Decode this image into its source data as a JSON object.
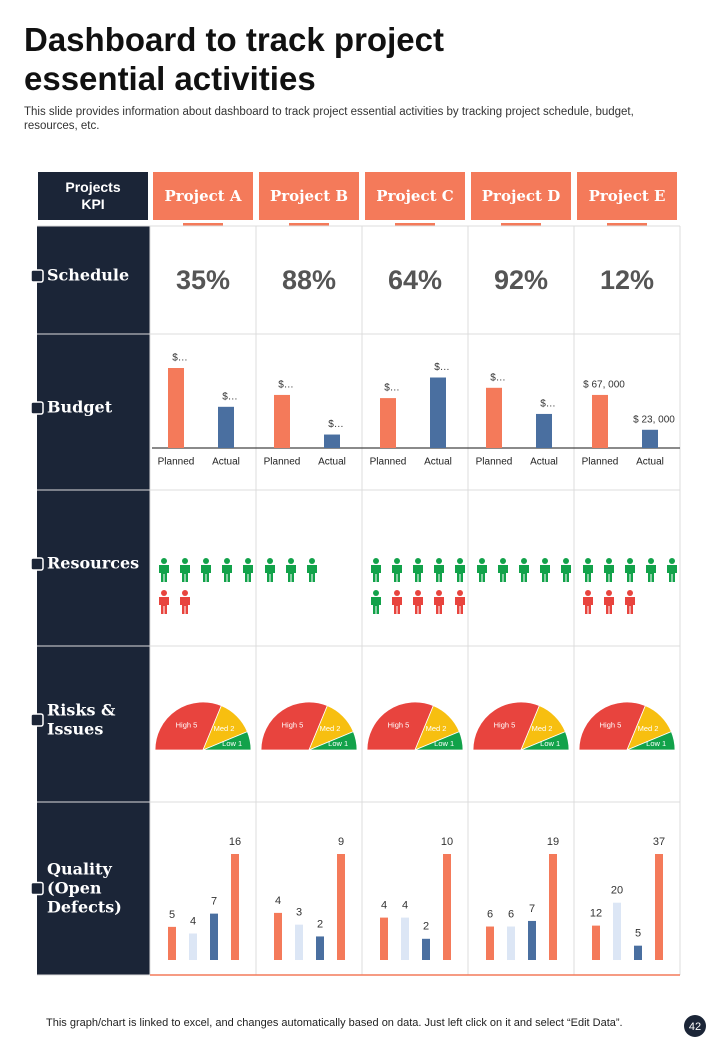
{
  "header": {
    "title": "Dashboard to track project essential activities",
    "subtitle": "This slide provides information about dashboard to track project essential activities by tracking project schedule, budget, resources, etc."
  },
  "kpi_header": "Projects KPI",
  "projects": [
    "Project A",
    "Project B",
    "Project C",
    "Project D",
    "Project E"
  ],
  "rows": [
    "Schedule",
    "Budget",
    "Resources",
    "Risks & Issues",
    "Quality (Open Defects)"
  ],
  "schedule": [
    "35%",
    "88%",
    "64%",
    "92%",
    "12%"
  ],
  "budget": {
    "categories": [
      "Planned",
      "Actual"
    ],
    "colors": [
      "#f47a5a",
      "#4a6fa0"
    ],
    "projects": [
      {
        "values": [
          101000,
          52000
        ],
        "value_labels": [
          "$…",
          "$…"
        ]
      },
      {
        "values": [
          67000,
          17000
        ],
        "value_labels": [
          "$…",
          "$…"
        ]
      },
      {
        "values": [
          63000,
          89000
        ],
        "value_labels": [
          "$…",
          "$…"
        ]
      },
      {
        "values": [
          76000,
          43000
        ],
        "value_labels": [
          "$…",
          "$…"
        ]
      },
      {
        "values": [
          67000,
          23000
        ],
        "value_labels": [
          "$ 67, 000",
          "$ 23, 000"
        ]
      }
    ]
  },
  "resources": {
    "colors": [
      "#12a24a",
      "#e8443e"
    ],
    "projects": [
      {
        "values": [
          5,
          2
        ]
      },
      {
        "values": [
          3,
          0
        ]
      },
      {
        "values": [
          6,
          4
        ]
      },
      {
        "values": [
          5,
          0
        ]
      },
      {
        "values": [
          5,
          3
        ]
      }
    ]
  },
  "risks": {
    "colors": [
      "#e8443e",
      "#f7bf10",
      "#12a24a"
    ],
    "projects": [
      {
        "names": [
          "High",
          "Med",
          "Low"
        ],
        "values": [
          5,
          2,
          1
        ]
      },
      {
        "names": [
          "High",
          "Med",
          "Low"
        ],
        "values": [
          5,
          2,
          1
        ]
      },
      {
        "names": [
          "High",
          "Med",
          "Low"
        ],
        "values": [
          5,
          2,
          1
        ]
      },
      {
        "names": [
          "High",
          "Med",
          "Low"
        ],
        "values": [
          5,
          2,
          1
        ]
      },
      {
        "names": [
          "High",
          "Med",
          "Low"
        ],
        "values": [
          5,
          2,
          1
        ]
      }
    ]
  },
  "quality": {
    "colors": [
      "#f47a5a",
      "#dce6f5",
      "#4a6fa0",
      "#f47a5a"
    ],
    "projects": [
      {
        "values": [
          5,
          4,
          7,
          16
        ]
      },
      {
        "values": [
          4,
          3,
          2,
          9
        ]
      },
      {
        "values": [
          4,
          4,
          2,
          10
        ]
      },
      {
        "values": [
          6,
          6,
          7,
          19
        ]
      },
      {
        "values": [
          12,
          20,
          5,
          37
        ]
      }
    ]
  },
  "footer": {
    "note": "This graph/chart is linked to excel,  and changes automatically based on data. Just left click on it and select “Edit Data”.",
    "page": "42"
  }
}
